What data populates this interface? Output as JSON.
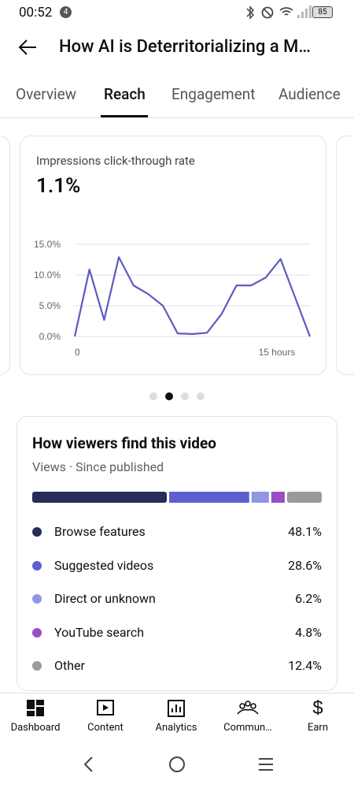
{
  "status": {
    "time": "00:52",
    "badge": "4",
    "battery": "85"
  },
  "header": {
    "title": "How AI is Deterritorializing a M…"
  },
  "tabs": [
    "Overview",
    "Reach",
    "Engagement",
    "Audience"
  ],
  "chart_data": {
    "type": "line",
    "title": "Impressions click-through rate",
    "headline": "1.1%",
    "x": [
      0,
      1,
      2,
      3,
      4,
      5,
      6,
      7,
      8,
      9,
      10,
      11,
      12,
      13,
      14,
      15,
      16
    ],
    "series": [
      {
        "name": "CTR",
        "color": "#5c5bbf",
        "values": [
          0,
          10.9,
          2.7,
          12.9,
          8.3,
          6.9,
          5.0,
          0.5,
          0.4,
          0.6,
          3.7,
          8.3,
          8.3,
          9.6,
          12.6,
          6.3,
          0
        ]
      }
    ],
    "xlim": [
      0,
      16
    ],
    "xticks": [
      {
        "value": 0,
        "label": "0"
      },
      {
        "value": 15,
        "label": "15 hours"
      }
    ],
    "ylim": [
      0,
      15
    ],
    "yticks": [
      {
        "value": 0,
        "label": "0.0%"
      },
      {
        "value": 5,
        "label": "5.0%"
      },
      {
        "value": 10,
        "label": "10.0%"
      },
      {
        "value": 15,
        "label": "15.0%"
      }
    ],
    "grid": true
  },
  "sources": {
    "title": "How viewers find this video",
    "subtitle": "Views · Since published",
    "items": [
      {
        "name": "Browse features",
        "value": 48.1,
        "label": "48.1%",
        "color": "#282a5a"
      },
      {
        "name": "Suggested videos",
        "value": 28.6,
        "label": "28.6%",
        "color": "#5c5fcf"
      },
      {
        "name": "Direct or unknown",
        "value": 6.2,
        "label": "6.2%",
        "color": "#9195e4"
      },
      {
        "name": "YouTube search",
        "value": 4.8,
        "label": "4.8%",
        "color": "#9b4dc5"
      },
      {
        "name": "Other",
        "value": 12.4,
        "label": "12.4%",
        "color": "#9a9a9a"
      }
    ]
  },
  "nav": [
    "Dashboard",
    "Content",
    "Analytics",
    "Commun…",
    "Earn"
  ]
}
